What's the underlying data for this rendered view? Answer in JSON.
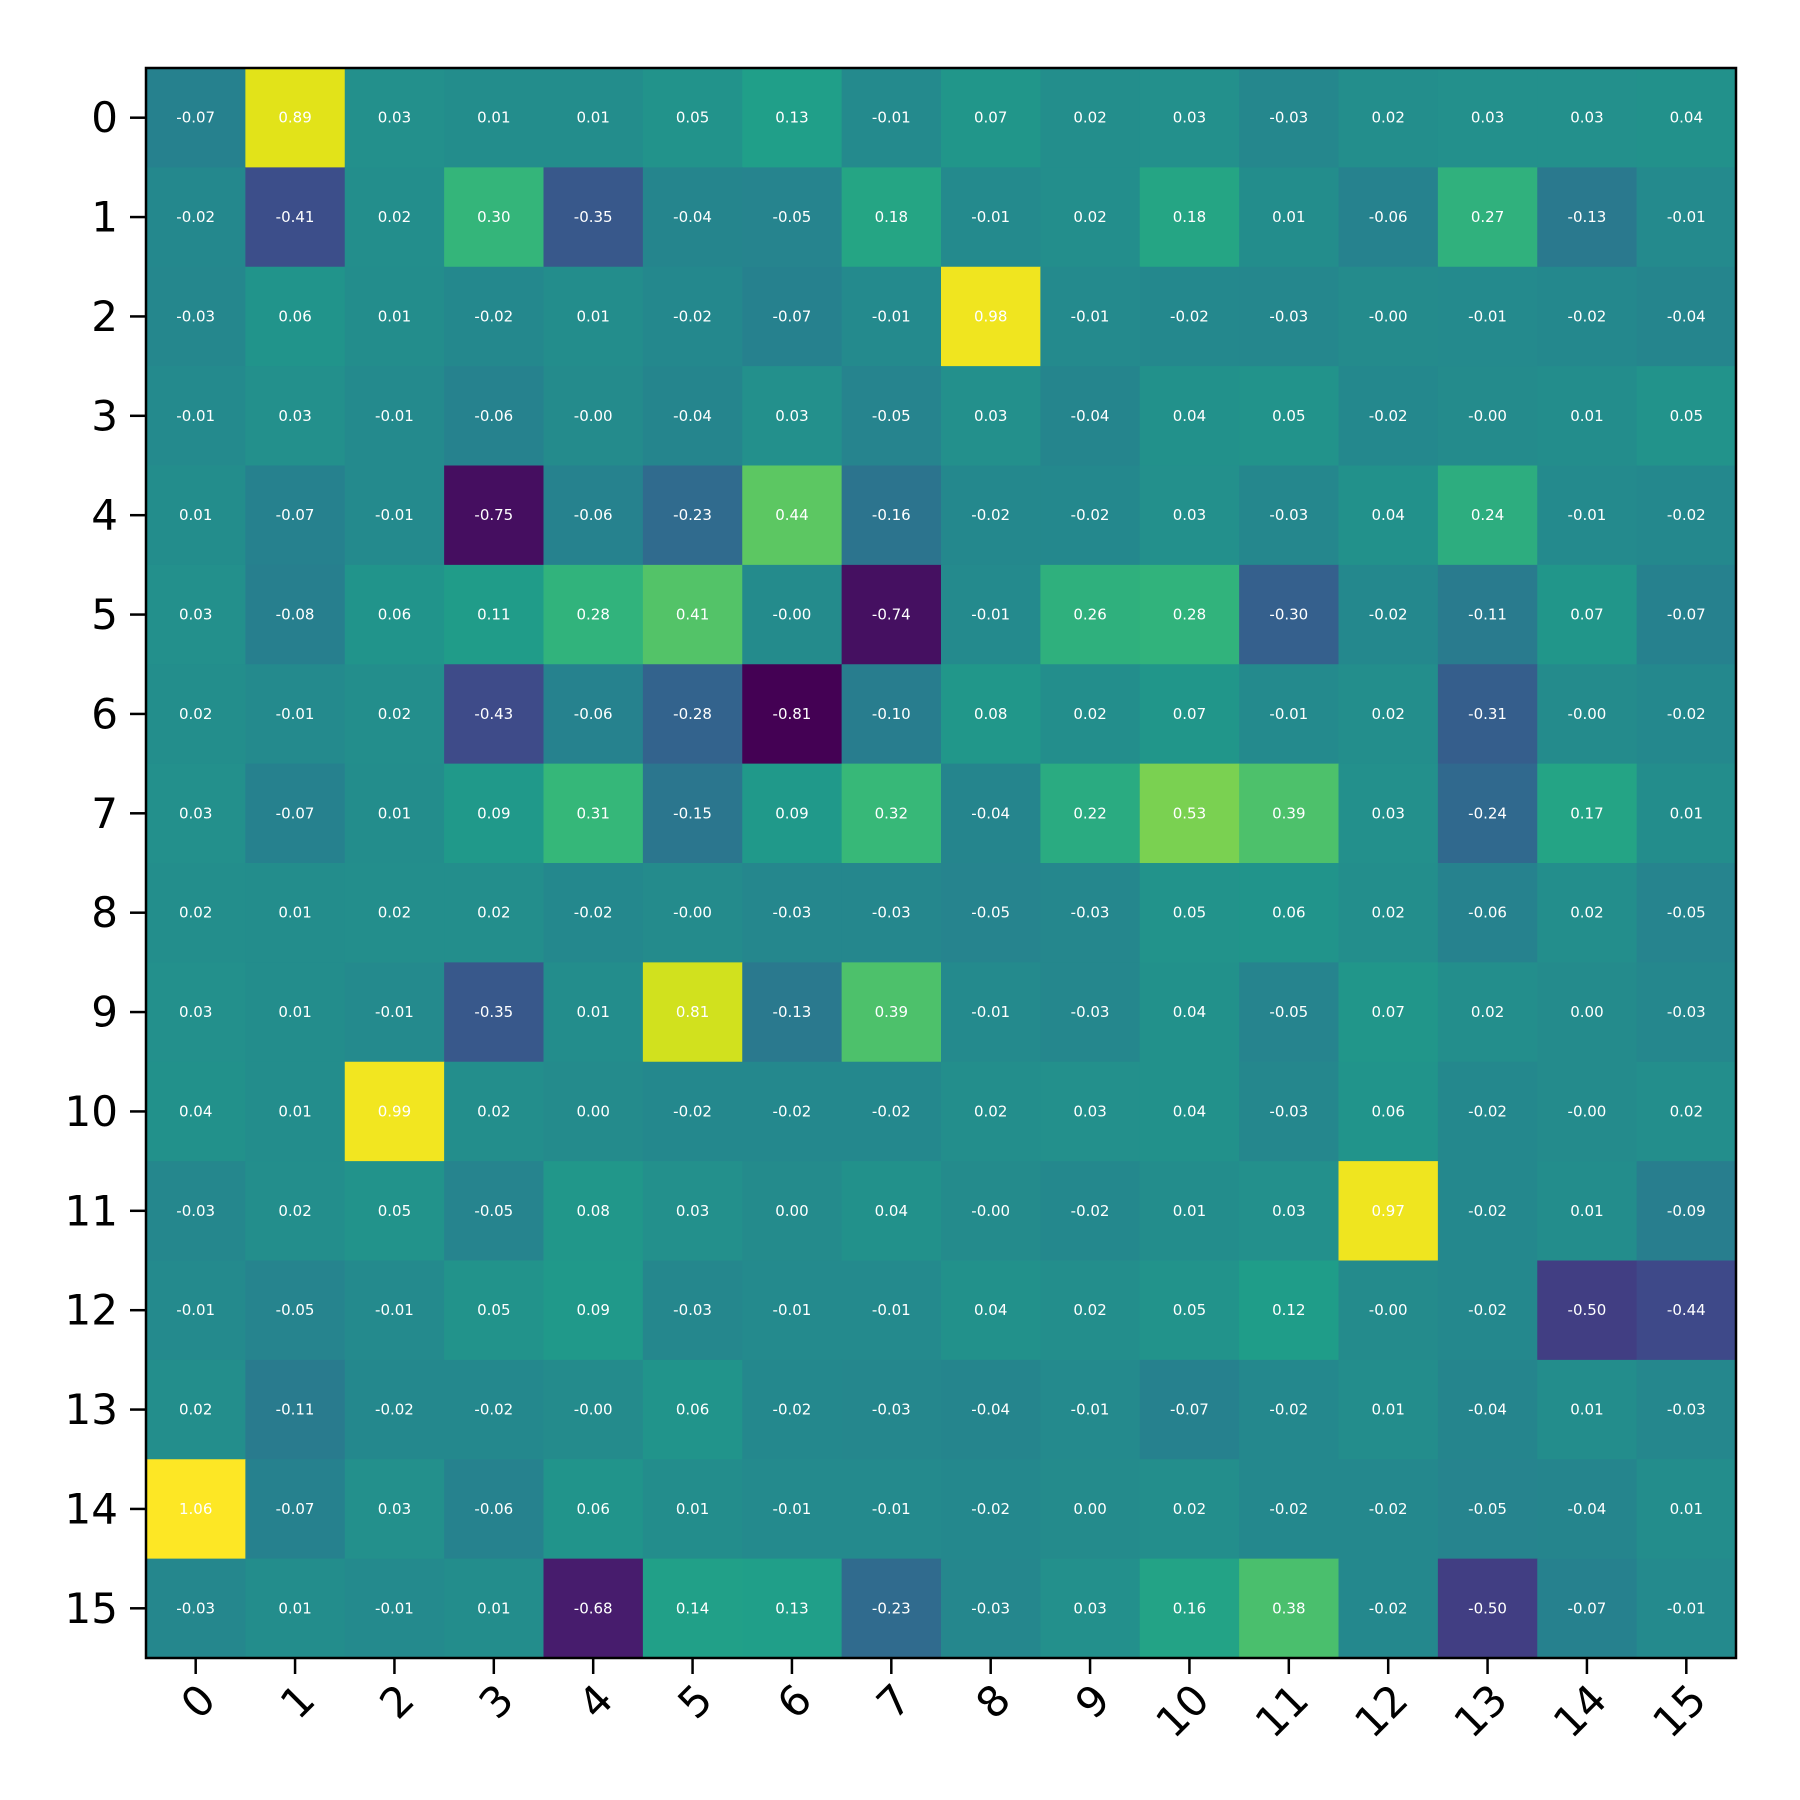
{
  "chart_data": {
    "type": "heatmap",
    "title": "",
    "xlabel": "",
    "ylabel": "",
    "colormap": "viridis",
    "value_range": [
      -0.81,
      1.06
    ],
    "x_categories": [
      "0",
      "1",
      "2",
      "3",
      "4",
      "5",
      "6",
      "7",
      "8",
      "9",
      "10",
      "11",
      "12",
      "13",
      "14",
      "15"
    ],
    "y_categories": [
      "0",
      "1",
      "2",
      "3",
      "4",
      "5",
      "6",
      "7",
      "8",
      "9",
      "10",
      "11",
      "12",
      "13",
      "14",
      "15"
    ],
    "values": [
      [
        -0.07,
        0.89,
        0.03,
        0.01,
        0.01,
        0.05,
        0.13,
        -0.01,
        0.07,
        0.02,
        0.03,
        -0.03,
        0.02,
        0.03,
        0.03,
        0.04
      ],
      [
        -0.02,
        -0.41,
        0.02,
        0.3,
        -0.35,
        -0.04,
        -0.05,
        0.18,
        -0.01,
        0.02,
        0.18,
        0.01,
        -0.06,
        0.27,
        -0.13,
        -0.01
      ],
      [
        -0.03,
        0.06,
        0.01,
        -0.02,
        0.01,
        -0.02,
        -0.07,
        -0.01,
        0.98,
        -0.01,
        -0.02,
        -0.03,
        -0.0,
        -0.01,
        -0.02,
        -0.04
      ],
      [
        -0.01,
        0.03,
        -0.01,
        -0.06,
        -0.0,
        -0.04,
        0.03,
        -0.05,
        0.03,
        -0.04,
        0.04,
        0.05,
        -0.02,
        -0.0,
        0.01,
        0.05
      ],
      [
        0.01,
        -0.07,
        -0.01,
        -0.75,
        -0.06,
        -0.23,
        0.44,
        -0.16,
        -0.02,
        -0.02,
        0.03,
        -0.03,
        0.04,
        0.24,
        -0.01,
        -0.02
      ],
      [
        0.03,
        -0.08,
        0.06,
        0.11,
        0.28,
        0.41,
        -0.0,
        -0.74,
        -0.01,
        0.26,
        0.28,
        -0.3,
        -0.02,
        -0.11,
        0.07,
        -0.07
      ],
      [
        0.02,
        -0.01,
        0.02,
        -0.43,
        -0.06,
        -0.28,
        -0.81,
        -0.1,
        0.08,
        0.02,
        0.07,
        -0.01,
        0.02,
        -0.31,
        -0.0,
        -0.02
      ],
      [
        0.03,
        -0.07,
        0.01,
        0.09,
        0.31,
        -0.15,
        0.09,
        0.32,
        -0.04,
        0.22,
        0.53,
        0.39,
        0.03,
        -0.24,
        0.17,
        0.01
      ],
      [
        0.02,
        0.01,
        0.02,
        0.02,
        -0.02,
        -0.0,
        -0.03,
        -0.03,
        -0.05,
        -0.03,
        0.05,
        0.06,
        0.02,
        -0.06,
        0.02,
        -0.05
      ],
      [
        0.03,
        0.01,
        -0.01,
        -0.35,
        0.01,
        0.81,
        -0.13,
        0.39,
        -0.01,
        -0.03,
        0.04,
        -0.05,
        0.07,
        0.02,
        0.0,
        -0.03
      ],
      [
        0.04,
        0.01,
        0.99,
        0.02,
        0.0,
        -0.02,
        -0.02,
        -0.02,
        0.02,
        0.03,
        0.04,
        -0.03,
        0.06,
        -0.02,
        -0.0,
        0.02
      ],
      [
        -0.03,
        0.02,
        0.05,
        -0.05,
        0.08,
        0.03,
        0.0,
        0.04,
        -0.0,
        -0.02,
        0.01,
        0.03,
        0.97,
        -0.02,
        0.01,
        -0.09
      ],
      [
        -0.01,
        -0.05,
        -0.01,
        0.05,
        0.09,
        -0.03,
        -0.01,
        -0.01,
        0.04,
        0.02,
        0.05,
        0.12,
        -0.0,
        -0.02,
        -0.5,
        -0.44
      ],
      [
        0.02,
        -0.11,
        -0.02,
        -0.02,
        -0.0,
        0.06,
        -0.02,
        -0.03,
        -0.04,
        -0.01,
        -0.07,
        -0.02,
        0.01,
        -0.04,
        0.01,
        -0.03
      ],
      [
        1.06,
        -0.07,
        0.03,
        -0.06,
        0.06,
        0.01,
        -0.01,
        -0.01,
        -0.02,
        0.0,
        0.02,
        -0.02,
        -0.02,
        -0.05,
        -0.04,
        0.01
      ],
      [
        -0.03,
        0.01,
        -0.01,
        0.01,
        -0.68,
        0.14,
        0.13,
        -0.23,
        -0.03,
        0.03,
        0.16,
        0.38,
        -0.02,
        -0.5,
        -0.07,
        -0.01
      ]
    ],
    "cell_labels": [
      [
        "-0.07",
        "0.89",
        "0.03",
        "0.01",
        "0.01",
        "0.05",
        "0.13",
        "-0.01",
        "0.07",
        "0.02",
        "0.03",
        "-0.03",
        "0.02",
        "0.03",
        "0.03",
        "0.04"
      ],
      [
        "-0.02",
        "-0.41",
        "0.02",
        "0.30",
        "-0.35",
        "-0.04",
        "-0.05",
        "0.18",
        "-0.01",
        "0.02",
        "0.18",
        "0.01",
        "-0.06",
        "0.27",
        "-0.13",
        "-0.01"
      ],
      [
        "-0.03",
        "0.06",
        "0.01",
        "-0.02",
        "0.01",
        "-0.02",
        "-0.07",
        "-0.01",
        "0.98",
        "-0.01",
        "-0.02",
        "-0.03",
        "-0.00",
        "-0.01",
        "-0.02",
        "-0.04"
      ],
      [
        "-0.01",
        "0.03",
        "-0.01",
        "-0.06",
        "-0.00",
        "-0.04",
        "0.03",
        "-0.05",
        "0.03",
        "-0.04",
        "0.04",
        "0.05",
        "-0.02",
        "-0.00",
        "0.01",
        "0.05"
      ],
      [
        "0.01",
        "-0.07",
        "-0.01",
        "-0.75",
        "-0.06",
        "-0.23",
        "0.44",
        "-0.16",
        "-0.02",
        "-0.02",
        "0.03",
        "-0.03",
        "0.04",
        "0.24",
        "-0.01",
        "-0.02"
      ],
      [
        "0.03",
        "-0.08",
        "0.06",
        "0.11",
        "0.28",
        "0.41",
        "-0.00",
        "-0.74",
        "-0.01",
        "0.26",
        "0.28",
        "-0.30",
        "-0.02",
        "-0.11",
        "0.07",
        "-0.07"
      ],
      [
        "0.02",
        "-0.01",
        "0.02",
        "-0.43",
        "-0.06",
        "-0.28",
        "-0.81",
        "-0.10",
        "0.08",
        "0.02",
        "0.07",
        "-0.01",
        "0.02",
        "-0.31",
        "-0.00",
        "-0.02"
      ],
      [
        "0.03",
        "-0.07",
        "0.01",
        "0.09",
        "0.31",
        "-0.15",
        "0.09",
        "0.32",
        "-0.04",
        "0.22",
        "0.53",
        "0.39",
        "0.03",
        "-0.24",
        "0.17",
        "0.01"
      ],
      [
        "0.02",
        "0.01",
        "0.02",
        "0.02",
        "-0.02",
        "-0.00",
        "-0.03",
        "-0.03",
        "-0.05",
        "-0.03",
        "0.05",
        "0.06",
        "0.02",
        "-0.06",
        "0.02",
        "-0.05"
      ],
      [
        "0.03",
        "0.01",
        "-0.01",
        "-0.35",
        "0.01",
        "0.81",
        "-0.13",
        "0.39",
        "-0.01",
        "-0.03",
        "0.04",
        "-0.05",
        "0.07",
        "0.02",
        "0.00",
        "-0.03"
      ],
      [
        "0.04",
        "0.01",
        "0.99",
        "0.02",
        "0.00",
        "-0.02",
        "-0.02",
        "-0.02",
        "0.02",
        "0.03",
        "0.04",
        "-0.03",
        "0.06",
        "-0.02",
        "-0.00",
        "0.02"
      ],
      [
        "-0.03",
        "0.02",
        "0.05",
        "-0.05",
        "0.08",
        "0.03",
        "0.00",
        "0.04",
        "-0.00",
        "-0.02",
        "0.01",
        "0.03",
        "0.97",
        "-0.02",
        "0.01",
        "-0.09"
      ],
      [
        "-0.01",
        "-0.05",
        "-0.01",
        "0.05",
        "0.09",
        "-0.03",
        "-0.01",
        "-0.01",
        "0.04",
        "0.02",
        "0.05",
        "0.12",
        "-0.00",
        "-0.02",
        "-0.50",
        "-0.44"
      ],
      [
        "0.02",
        "-0.11",
        "-0.02",
        "-0.02",
        "-0.00",
        "0.06",
        "-0.02",
        "-0.03",
        "-0.04",
        "-0.01",
        "-0.07",
        "-0.02",
        "0.01",
        "-0.04",
        "0.01",
        "-0.03"
      ],
      [
        "1.06",
        "-0.07",
        "0.03",
        "-0.06",
        "0.06",
        "0.01",
        "-0.01",
        "-0.01",
        "-0.02",
        "0.00",
        "0.02",
        "-0.02",
        "-0.02",
        "-0.05",
        "-0.04",
        "0.01"
      ],
      [
        "-0.03",
        "0.01",
        "-0.01",
        "0.01",
        "-0.68",
        "0.14",
        "0.13",
        "-0.23",
        "-0.03",
        "0.03",
        "0.16",
        "0.38",
        "-0.02",
        "-0.50",
        "-0.07",
        "-0.01"
      ]
    ],
    "grid": false,
    "legend": "none",
    "colorbar": false
  }
}
